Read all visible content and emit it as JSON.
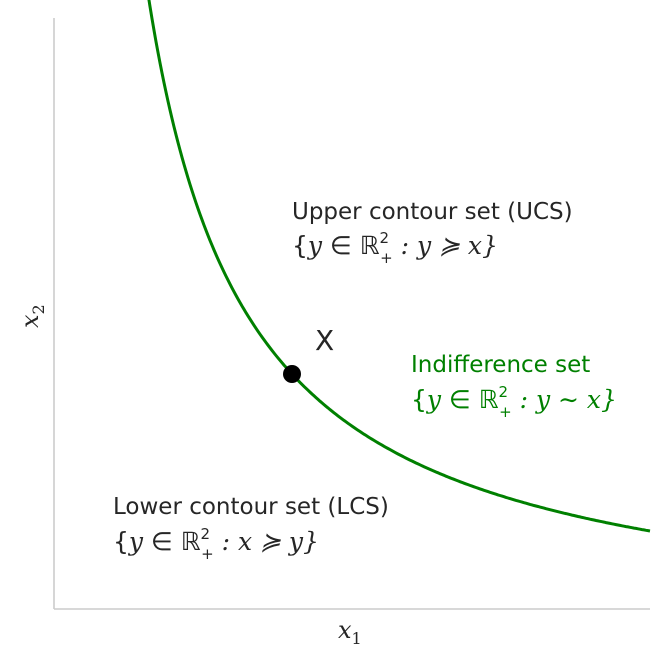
{
  "x_label": "x",
  "x_label_sub": "1",
  "y_label": "x",
  "y_label_sub": "2",
  "point_label": "X",
  "upper": {
    "title": "Upper contour set (UCS)",
    "set_open": "{",
    "set_y": "y",
    "set_in": " ∈ ",
    "set_R": "ℝ",
    "set_sup": "2",
    "set_subp": "+",
    "set_rest": " : y ≽ x}"
  },
  "indiff": {
    "title": "Indifference set",
    "set_open": "{",
    "set_y": "y",
    "set_in": " ∈ ",
    "set_R": "ℝ",
    "set_sup": "2",
    "set_subp": "+",
    "set_rest": " : y ∼ x}"
  },
  "lower": {
    "title": "Lower contour set (LCS)",
    "set_open": "{",
    "set_y": "y",
    "set_in": " ∈ ",
    "set_R": "ℝ",
    "set_sup": "2",
    "set_subp": "+",
    "set_rest": " : x ≽ y}"
  },
  "colors": {
    "curve": "#008000",
    "axis": "#cccccc",
    "text": "#262626",
    "point": "#000000"
  }
}
